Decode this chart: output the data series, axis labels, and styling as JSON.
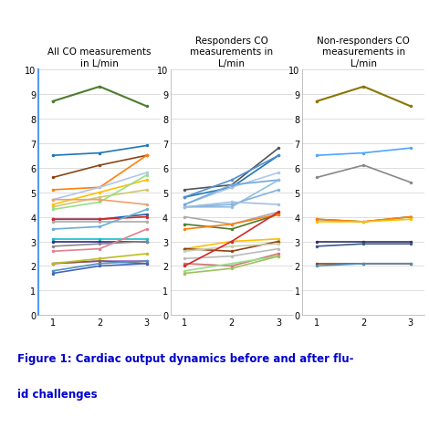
{
  "titles": [
    "All CO measurements\nin L/min",
    "Responders CO\nmeasurements in\nL/min",
    "Non-responders CO\nmeasurements in\nL/min"
  ],
  "figure_caption_line1": "Figure 1: Cardiac output dynamics before and after flu-",
  "figure_caption_line2": "id challenges",
  "ylim": [
    0,
    10
  ],
  "yticks": [
    0,
    1,
    2,
    3,
    4,
    5,
    6,
    7,
    8,
    9,
    10
  ],
  "xticks": [
    1,
    2,
    3
  ],
  "all_lines": [
    {
      "y": [
        8.7,
        9.3,
        8.5
      ],
      "color": "#4d7c2f",
      "lw": 1.5
    },
    {
      "y": [
        6.5,
        6.6,
        6.9
      ],
      "color": "#1f77b4",
      "lw": 1.2
    },
    {
      "y": [
        5.6,
        6.1,
        6.5
      ],
      "color": "#8B4513",
      "lw": 1.2
    },
    {
      "y": [
        5.1,
        5.2,
        6.5
      ],
      "color": "#ff7f0e",
      "lw": 1.2
    },
    {
      "y": [
        4.7,
        5.2,
        5.8
      ],
      "color": "#aec7e8",
      "lw": 1.2
    },
    {
      "y": [
        4.5,
        5.0,
        5.5
      ],
      "color": "#ffbf00",
      "lw": 1.2
    },
    {
      "y": [
        4.4,
        4.8,
        5.1
      ],
      "color": "#d4c66e",
      "lw": 1.2
    },
    {
      "y": [
        4.3,
        4.6,
        5.7
      ],
      "color": "#98df8a",
      "lw": 1.2
    },
    {
      "y": [
        4.7,
        4.7,
        4.5
      ],
      "color": "#f0a070",
      "lw": 1.2
    },
    {
      "y": [
        3.9,
        3.9,
        4.1
      ],
      "color": "#1f5fa6",
      "lw": 1.2
    },
    {
      "y": [
        3.9,
        3.9,
        4.0
      ],
      "color": "#d62728",
      "lw": 1.2
    },
    {
      "y": [
        3.8,
        3.8,
        3.8
      ],
      "color": "#aaaaaa",
      "lw": 1.2
    },
    {
      "y": [
        3.5,
        3.6,
        4.3
      ],
      "color": "#6baed6",
      "lw": 1.2
    },
    {
      "y": [
        3.1,
        3.1,
        3.1
      ],
      "color": "#17becf",
      "lw": 1.2
    },
    {
      "y": [
        3.0,
        3.0,
        3.0
      ],
      "color": "#2c2c8a",
      "lw": 1.2
    },
    {
      "y": [
        2.8,
        2.9,
        3.0
      ],
      "color": "#888888",
      "lw": 1.2
    },
    {
      "y": [
        2.6,
        2.7,
        3.5
      ],
      "color": "#e08090",
      "lw": 1.2
    },
    {
      "y": [
        2.1,
        2.2,
        2.2
      ],
      "color": "#9467bd",
      "lw": 1.2
    },
    {
      "y": [
        2.1,
        2.2,
        2.1
      ],
      "color": "#8c564b",
      "lw": 1.2
    },
    {
      "y": [
        2.1,
        2.3,
        2.5
      ],
      "color": "#bcbd22",
      "lw": 1.2
    },
    {
      "y": [
        1.8,
        2.1,
        2.2
      ],
      "color": "#5090c0",
      "lw": 1.2
    },
    {
      "y": [
        1.7,
        2.0,
        2.1
      ],
      "color": "#4466bb",
      "lw": 1.2
    }
  ],
  "responder_lines": [
    {
      "y": [
        5.1,
        5.3,
        6.8
      ],
      "color": "#555555",
      "lw": 1.2
    },
    {
      "y": [
        4.8,
        5.2,
        6.5
      ],
      "color": "#1f77b4",
      "lw": 1.2
    },
    {
      "y": [
        4.8,
        5.5,
        6.5
      ],
      "color": "#5090d0",
      "lw": 1.2
    },
    {
      "y": [
        4.5,
        5.2,
        5.8
      ],
      "color": "#aec7e8",
      "lw": 1.2
    },
    {
      "y": [
        4.5,
        5.3,
        5.5
      ],
      "color": "#6fa8dc",
      "lw": 1.2
    },
    {
      "y": [
        4.4,
        4.4,
        5.5
      ],
      "color": "#90c0e0",
      "lw": 1.2
    },
    {
      "y": [
        4.4,
        4.5,
        5.1
      ],
      "color": "#85b0e0",
      "lw": 1.2
    },
    {
      "y": [
        4.4,
        4.6,
        4.5
      ],
      "color": "#a0c0e0",
      "lw": 1.2
    },
    {
      "y": [
        4.0,
        3.7,
        4.2
      ],
      "color": "#aaaaaa",
      "lw": 1.2
    },
    {
      "y": [
        3.7,
        3.5,
        4.1
      ],
      "color": "#4d7c2f",
      "lw": 1.2
    },
    {
      "y": [
        3.5,
        3.7,
        4.1
      ],
      "color": "#ff7f0e",
      "lw": 1.2
    },
    {
      "y": [
        2.7,
        3.0,
        3.1
      ],
      "color": "#ffbf00",
      "lw": 1.2
    },
    {
      "y": [
        2.7,
        2.6,
        3.0
      ],
      "color": "#8B4513",
      "lw": 1.2
    },
    {
      "y": [
        2.6,
        2.8,
        2.9
      ],
      "color": "#ccccaa",
      "lw": 1.2
    },
    {
      "y": [
        2.3,
        2.4,
        2.7
      ],
      "color": "#bbbbbb",
      "lw": 1.2
    },
    {
      "y": [
        2.1,
        2.0,
        2.5
      ],
      "color": "#d07070",
      "lw": 1.2
    },
    {
      "y": [
        2.0,
        3.0,
        4.2
      ],
      "color": "#d62728",
      "lw": 1.2
    },
    {
      "y": [
        1.8,
        2.1,
        2.4
      ],
      "color": "#98df8a",
      "lw": 1.2
    },
    {
      "y": [
        1.7,
        1.9,
        2.4
      ],
      "color": "#a0c060",
      "lw": 1.2
    }
  ],
  "nonresponder_lines": [
    {
      "y": [
        8.7,
        9.3,
        8.5
      ],
      "color": "#8B7500",
      "lw": 1.5
    },
    {
      "y": [
        6.5,
        6.6,
        6.8
      ],
      "color": "#4da6ff",
      "lw": 1.2
    },
    {
      "y": [
        5.6,
        6.1,
        5.4
      ],
      "color": "#888888",
      "lw": 1.2
    },
    {
      "y": [
        3.9,
        3.8,
        4.0
      ],
      "color": "#4d7c2f",
      "lw": 1.2
    },
    {
      "y": [
        3.9,
        3.8,
        4.0
      ],
      "color": "#ff7f0e",
      "lw": 1.2
    },
    {
      "y": [
        3.8,
        3.8,
        3.9
      ],
      "color": "#ffbf00",
      "lw": 1.2
    },
    {
      "y": [
        3.0,
        3.0,
        3.0
      ],
      "color": "#333366",
      "lw": 1.2
    },
    {
      "y": [
        2.8,
        2.9,
        2.9
      ],
      "color": "#3a5a8a",
      "lw": 1.2
    },
    {
      "y": [
        2.1,
        2.1,
        2.1
      ],
      "color": "#8B4513",
      "lw": 1.2
    },
    {
      "y": [
        2.0,
        2.1,
        2.1
      ],
      "color": "#5090c0",
      "lw": 1.2
    }
  ]
}
